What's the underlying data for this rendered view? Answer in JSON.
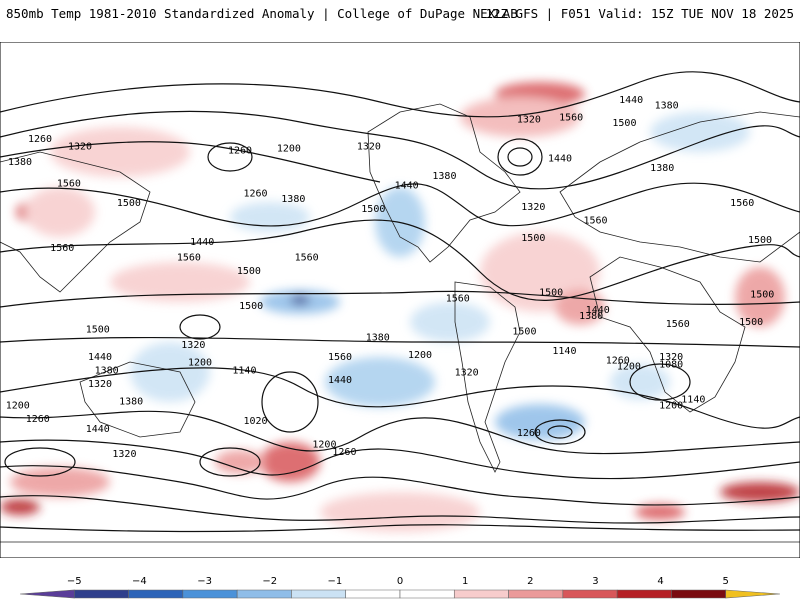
{
  "header": {
    "title_left": "850mb Temp 1981-2010 Standardized Anomaly | College of DuPage NEXLAB",
    "title_right": "12Z GFS | F051 Valid: 15Z TUE NOV 18 2025"
  },
  "contour_labels": [
    {
      "text": "1380",
      "lon": 300,
      "lat": 66
    },
    {
      "text": "1320",
      "lon": 238,
      "lat": 59
    },
    {
      "text": "1260",
      "lon": 18,
      "lat": 49
    },
    {
      "text": "1320",
      "lon": 36,
      "lat": 45
    },
    {
      "text": "1380",
      "lon": 9,
      "lat": 37
    },
    {
      "text": "1560",
      "lon": 31,
      "lat": 26
    },
    {
      "text": "1500",
      "lon": 58,
      "lat": 16
    },
    {
      "text": "1560",
      "lon": 28,
      "lat": -7
    },
    {
      "text": "1560",
      "lon": 85,
      "lat": -12
    },
    {
      "text": "1500",
      "lon": 44,
      "lat": -49
    },
    {
      "text": "1260",
      "lon": 108,
      "lat": 43
    },
    {
      "text": "1200",
      "lon": 130,
      "lat": 44
    },
    {
      "text": "1260",
      "lon": 115,
      "lat": 21
    },
    {
      "text": "1380",
      "lon": 132,
      "lat": 18
    },
    {
      "text": "1440",
      "lon": 91,
      "lat": -4
    },
    {
      "text": "1560",
      "lon": 138,
      "lat": -12
    },
    {
      "text": "1500",
      "lon": 113,
      "lat": -37
    },
    {
      "text": "1320",
      "lon": 166,
      "lat": 45
    },
    {
      "text": "1440",
      "lon": 183,
      "lat": 25
    },
    {
      "text": "1500",
      "lon": 168,
      "lat": 13
    },
    {
      "text": "1380",
      "lon": 200,
      "lat": 30
    },
    {
      "text": "1320",
      "lon": 240,
      "lat": 14
    },
    {
      "text": "1500",
      "lon": 240,
      "lat": -2
    },
    {
      "text": "1440",
      "lon": 284,
      "lat": 69
    },
    {
      "text": "1560",
      "lon": 257,
      "lat": 60
    },
    {
      "text": "1500",
      "lon": 281,
      "lat": 57
    },
    {
      "text": "1440",
      "lon": 252,
      "lat": 39
    },
    {
      "text": "1560",
      "lon": 268,
      "lat": 7
    },
    {
      "text": "1380",
      "lon": 298,
      "lat": 34
    },
    {
      "text": "1560",
      "lon": 334,
      "lat": 16
    },
    {
      "text": "1500",
      "lon": 342,
      "lat": -3
    },
    {
      "text": "1500",
      "lon": 343,
      "lat": -31
    },
    {
      "text": "1500",
      "lon": 112,
      "lat": -19
    },
    {
      "text": "1560",
      "lon": 206,
      "lat": -33
    },
    {
      "text": "1500",
      "lon": 248,
      "lat": -30
    },
    {
      "text": "1500",
      "lon": 236,
      "lat": -50
    },
    {
      "text": "1440",
      "lon": 269,
      "lat": -39
    },
    {
      "text": "1380",
      "lon": 266,
      "lat": -42
    },
    {
      "text": "1560",
      "lon": 305,
      "lat": -46
    },
    {
      "text": "1500",
      "lon": 338,
      "lat": -45
    },
    {
      "text": "1380",
      "lon": 170,
      "lat": -53
    },
    {
      "text": "1200",
      "lon": 189,
      "lat": -62
    },
    {
      "text": "1320",
      "lon": 210,
      "lat": -71
    },
    {
      "text": "1140",
      "lon": 254,
      "lat": -60
    },
    {
      "text": "1260",
      "lon": 278,
      "lat": -65
    },
    {
      "text": "1200",
      "lon": 283,
      "lat": -68
    },
    {
      "text": "1320",
      "lon": 302,
      "lat": -63
    },
    {
      "text": "1080",
      "lon": 302,
      "lat": -67
    },
    {
      "text": "1140",
      "lon": 312,
      "lat": -85
    },
    {
      "text": "1200",
      "lon": 302,
      "lat": -88
    },
    {
      "text": "1260",
      "lon": 238,
      "lat": -102
    },
    {
      "text": "1260",
      "lon": 155,
      "lat": -112
    },
    {
      "text": "1200",
      "lon": 146,
      "lat": -108
    },
    {
      "text": "1320",
      "lon": 56,
      "lat": -113
    },
    {
      "text": "1380",
      "lon": 59,
      "lat": -86
    },
    {
      "text": "1440",
      "lon": 44,
      "lat": -100
    },
    {
      "text": "1320",
      "lon": 45,
      "lat": -77
    },
    {
      "text": "1200",
      "lon": 8,
      "lat": -88
    },
    {
      "text": "1260",
      "lon": 17,
      "lat": -95
    },
    {
      "text": "1440",
      "lon": 45,
      "lat": -63
    },
    {
      "text": "1380",
      "lon": 48,
      "lat": -70
    },
    {
      "text": "1320",
      "lon": 87,
      "lat": -57
    },
    {
      "text": "1200",
      "lon": 90,
      "lat": -66
    },
    {
      "text": "1140",
      "lon": 110,
      "lat": -70
    },
    {
      "text": "1020",
      "lon": 115,
      "lat": -96
    },
    {
      "text": "1560",
      "lon": 153,
      "lat": -63
    },
    {
      "text": "1440",
      "lon": 153,
      "lat": -75
    }
  ],
  "colorbar": {
    "ticks": [
      "−5",
      "−4",
      "−3",
      "−2",
      "−1",
      "0",
      "1",
      "2",
      "3",
      "4",
      "5"
    ],
    "colors": [
      "#5a3d99",
      "#2f3f8c",
      "#2d64b8",
      "#4b92d9",
      "#8fbde8",
      "#cbe2f4",
      "#ffffff",
      "#ffffff",
      "#f7cccc",
      "#eb9a9a",
      "#d8575a",
      "#b52025",
      "#7a0b10",
      "#f0c020"
    ]
  }
}
